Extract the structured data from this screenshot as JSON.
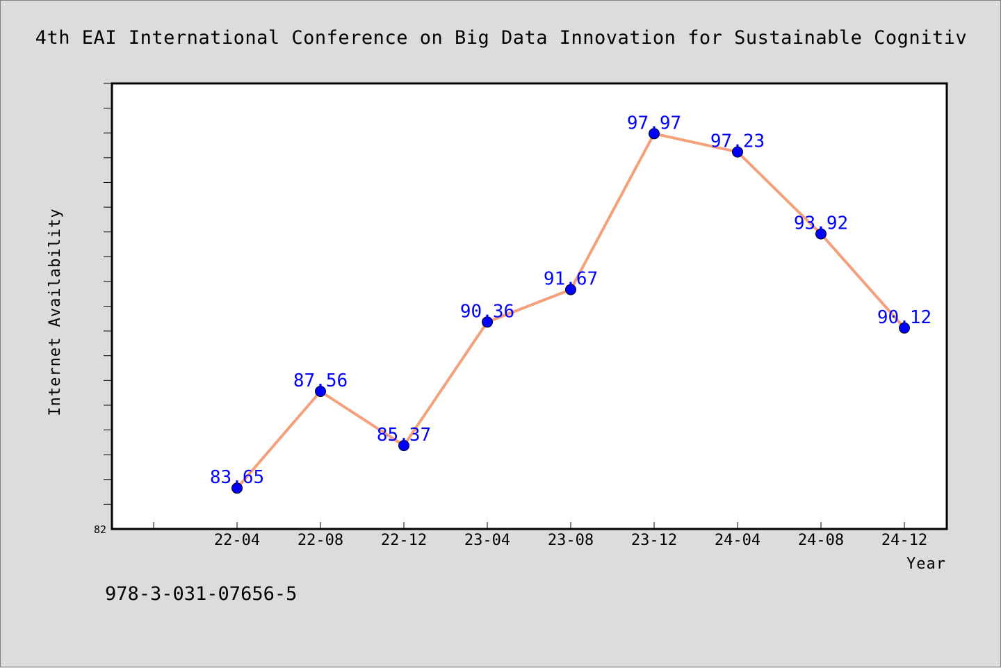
{
  "chart_data": {
    "type": "line",
    "title": "4th EAI International Conference on Big Data Innovation for Sustainable Cognitiv",
    "xlabel": "Year",
    "ylabel": "Internet Availability",
    "categories": [
      "22-04",
      "22-08",
      "22-12",
      "23-04",
      "23-08",
      "23-12",
      "24-04",
      "24-08",
      "24-12"
    ],
    "series": [
      {
        "values": [
          83.65,
          87.56,
          85.37,
          90.36,
          91.67,
          97.97,
          97.23,
          93.92,
          90.12
        ],
        "labels": [
          "83.65",
          "87.56",
          "85.37",
          "90.36",
          "91.67",
          "97.97",
          "97.23",
          "93.92",
          "90.12"
        ],
        "line_color": "#f4a07a",
        "marker_color": "#0000ff"
      }
    ],
    "ylim": [
      82,
      100
    ],
    "y_tick_labels": [
      "82"
    ],
    "grid": false,
    "legend": "none"
  },
  "footnote": "978-3-031-07656-5",
  "colors": {
    "background": "#dcdcdc",
    "plot_area": "#ffffff",
    "line": "#f4a07a",
    "marker": "#0000ff",
    "data_label": "#0000ff"
  }
}
